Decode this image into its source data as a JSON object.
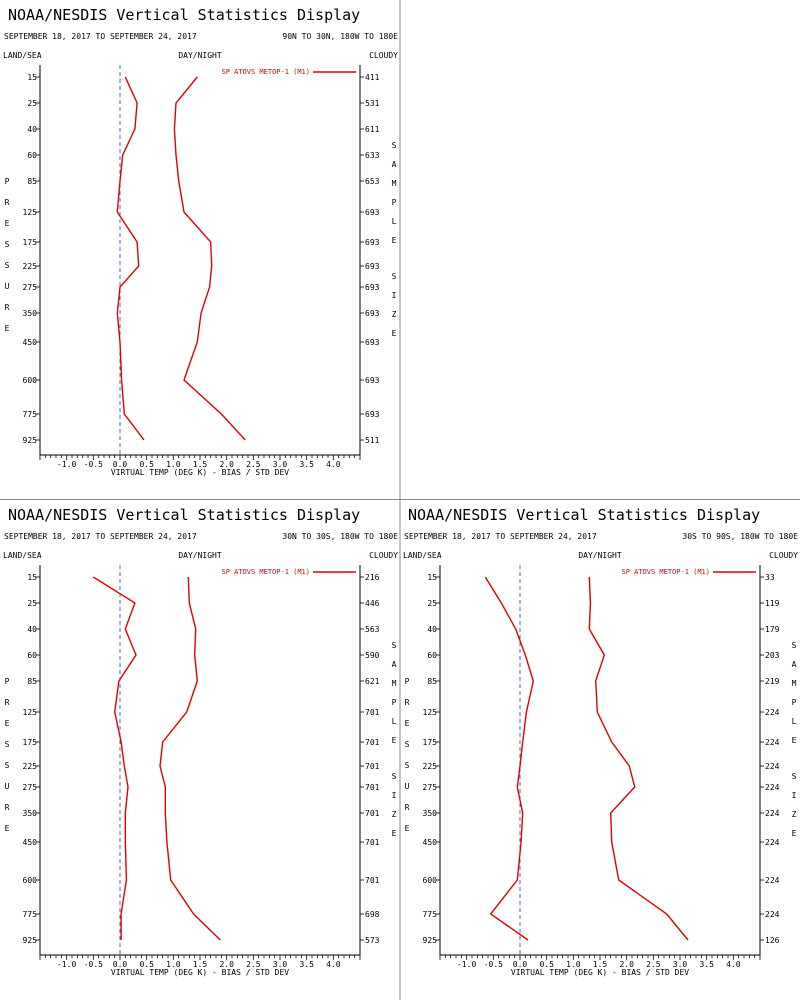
{
  "pressure_levels": [
    "15",
    "25",
    "40",
    "60",
    "85",
    "125",
    "175",
    "225",
    "275",
    "350",
    "450",
    "600",
    "775",
    "925"
  ],
  "x_ticks": [
    "-1.0",
    "-0.5",
    "0.0",
    "0.5",
    "1.0",
    "1.5",
    "2.0",
    "2.5",
    "3.0",
    "3.5",
    "4.0"
  ],
  "colors": {
    "series": "#e00000",
    "zero_line": "#2040c0",
    "axis": "#000000",
    "divider": "#888888"
  },
  "chart_data": [
    {
      "type": "line",
      "title": "NOAA/NESDIS Vertical Statistics Display",
      "date_range": "SEPTEMBER 18, 2017 TO SEPTEMBER 24, 2017",
      "region": "90N TO 30N, 180W TO 180E",
      "label_land_sea": "LAND/SEA",
      "label_day_night": "DAY/NIGHT",
      "label_cloudy": "CLOUDY",
      "ylabel": "PRESSURE",
      "xlabel": "VIRTUAL TEMP (DEG K) - BIAS / STD DEV",
      "right_label": "SAMPLE SIZE",
      "legend": "SP ATOVS METOP-1 (M1)",
      "xlim": [
        -1.5,
        4.5
      ],
      "bias": [
        0.1,
        0.32,
        0.28,
        0.05,
        0.0,
        -0.05,
        0.32,
        0.35,
        0.0,
        -0.05,
        0.0,
        0.03,
        0.08,
        0.45
      ],
      "std_dev": [
        1.45,
        1.05,
        1.02,
        1.05,
        1.1,
        1.2,
        1.7,
        1.72,
        1.68,
        1.52,
        1.45,
        1.2,
        1.9,
        2.35
      ],
      "sample_size": [
        "411",
        "531",
        "611",
        "633",
        "653",
        "693",
        "693",
        "693",
        "693",
        "693",
        "693",
        "693",
        "693",
        "511"
      ]
    },
    {
      "type": "line",
      "title": "NOAA/NESDIS Vertical Statistics Display",
      "date_range": "SEPTEMBER 18, 2017 TO SEPTEMBER 24, 2017",
      "region": "30N TO 30S, 180W TO 180E",
      "label_land_sea": "LAND/SEA",
      "label_day_night": "DAY/NIGHT",
      "label_cloudy": "CLOUDY",
      "ylabel": "PRESSURE",
      "xlabel": "VIRTUAL TEMP (DEG K) - BIAS / STD DEV",
      "right_label": "SAMPLE SIZE",
      "legend": "SP ATOVS METOP-1 (M1)",
      "xlim": [
        -1.5,
        4.5
      ],
      "bias": [
        -0.5,
        0.28,
        0.1,
        0.3,
        -0.02,
        -0.1,
        0.02,
        0.08,
        0.15,
        0.1,
        0.1,
        0.12,
        0.02,
        0.02
      ],
      "std_dev": [
        1.28,
        1.3,
        1.42,
        1.4,
        1.45,
        1.25,
        0.8,
        0.75,
        0.85,
        0.85,
        0.88,
        0.95,
        1.38,
        1.88
      ],
      "sample_size": [
        "216",
        "446",
        "563",
        "590",
        "621",
        "701",
        "701",
        "701",
        "701",
        "701",
        "701",
        "701",
        "698",
        "573"
      ]
    },
    {
      "type": "line",
      "title": "NOAA/NESDIS Vertical Statistics Display",
      "date_range": "SEPTEMBER 18, 2017 TO SEPTEMBER 24, 2017",
      "region": "30S TO 90S, 180W TO 180E",
      "label_land_sea": "LAND/SEA",
      "label_day_night": "DAY/NIGHT",
      "label_cloudy": "CLOUDY",
      "ylabel": "PRESSURE",
      "xlabel": "VIRTUAL TEMP (DEG K) - BIAS / STD DEV",
      "right_label": "SAMPLE SIZE",
      "legend": "SP ATOVS METOP-1 (M1)",
      "xlim": [
        -1.5,
        4.5
      ],
      "bias": [
        -0.65,
        -0.35,
        -0.08,
        0.1,
        0.25,
        0.12,
        0.05,
        0.0,
        -0.05,
        0.05,
        0.02,
        -0.05,
        -0.55,
        0.15
      ],
      "std_dev": [
        1.3,
        1.32,
        1.3,
        1.58,
        1.42,
        1.45,
        1.72,
        2.05,
        2.15,
        1.7,
        1.72,
        1.85,
        2.75,
        3.15
      ],
      "sample_size": [
        "33",
        "119",
        "179",
        "203",
        "219",
        "224",
        "224",
        "224",
        "224",
        "224",
        "224",
        "224",
        "224",
        "126"
      ]
    }
  ]
}
